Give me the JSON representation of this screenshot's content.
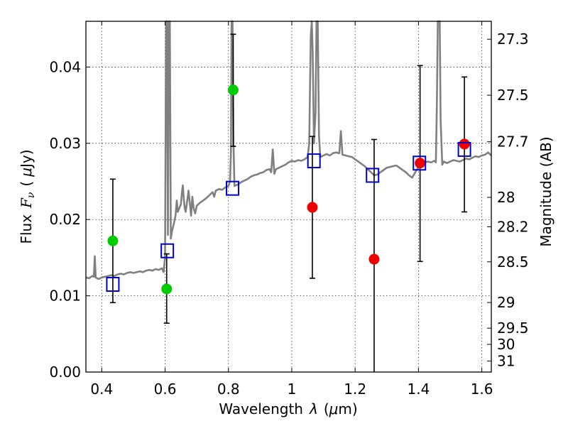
{
  "chart_data": {
    "type": "scatter",
    "xlabel_text": "Wavelength",
    "xlabel_symbol": "λ",
    "xlabel_unit_open": "(",
    "xlabel_unit_mu": "μ",
    "xlabel_unit_rest": "m)",
    "ylabel_text": "Flux",
    "ylabel_symbol": "F",
    "ylabel_sub": "ν",
    "ylabel_unit_open": "(",
    "ylabel_unit_mu": "μ",
    "ylabel_unit_rest": "Jy)",
    "y2label": "Magnitude (AB)",
    "xlim": [
      0.35,
      1.63
    ],
    "ylim": [
      0.0,
      0.046
    ],
    "grid": true,
    "x_ticks": [
      {
        "value": 0.4,
        "label": "0.4"
      },
      {
        "value": 0.6,
        "label": "0.6"
      },
      {
        "value": 0.8,
        "label": "0.8"
      },
      {
        "value": 1.0,
        "label": "1"
      },
      {
        "value": 1.2,
        "label": "1.2"
      },
      {
        "value": 1.4,
        "label": "1.4"
      },
      {
        "value": 1.6,
        "label": "1.6"
      }
    ],
    "y_ticks": [
      {
        "value": 0.0,
        "label": "0.00"
      },
      {
        "value": 0.01,
        "label": "0.01"
      },
      {
        "value": 0.02,
        "label": "0.02"
      },
      {
        "value": 0.03,
        "label": "0.03"
      },
      {
        "value": 0.04,
        "label": "0.04"
      }
    ],
    "mag_ticks": [
      {
        "mag": 27.3,
        "label": "27.3"
      },
      {
        "mag": 27.5,
        "label": "27.5"
      },
      {
        "mag": 27.7,
        "label": "27.7"
      },
      {
        "mag": 28.0,
        "label": "28"
      },
      {
        "mag": 28.2,
        "label": "28.2"
      },
      {
        "mag": 28.5,
        "label": "28.5"
      },
      {
        "mag": 29.0,
        "label": "29"
      },
      {
        "mag": 29.5,
        "label": "29.5"
      },
      {
        "mag": 30.0,
        "label": "30"
      },
      {
        "mag": 31.0,
        "label": "31"
      }
    ],
    "colors": {
      "spectrum": "#808080",
      "green": "#00cc00",
      "red": "#ee0000",
      "model": "#0000cc",
      "errbar": "#000000"
    },
    "spectrum": [
      [
        0.35,
        0.0124
      ],
      [
        0.36,
        0.0123
      ],
      [
        0.37,
        0.0126
      ],
      [
        0.375,
        0.0125
      ],
      [
        0.378,
        0.0152
      ],
      [
        0.381,
        0.0124
      ],
      [
        0.39,
        0.0122
      ],
      [
        0.4,
        0.0124
      ],
      [
        0.41,
        0.0125
      ],
      [
        0.42,
        0.0126
      ],
      [
        0.43,
        0.0127
      ],
      [
        0.44,
        0.0126
      ],
      [
        0.45,
        0.0128
      ],
      [
        0.46,
        0.0129
      ],
      [
        0.47,
        0.0128
      ],
      [
        0.48,
        0.013
      ],
      [
        0.49,
        0.0131
      ],
      [
        0.5,
        0.013
      ],
      [
        0.51,
        0.0131
      ],
      [
        0.52,
        0.0132
      ],
      [
        0.53,
        0.0131
      ],
      [
        0.54,
        0.0133
      ],
      [
        0.55,
        0.0134
      ],
      [
        0.56,
        0.0133
      ],
      [
        0.57,
        0.0135
      ],
      [
        0.58,
        0.0134
      ],
      [
        0.59,
        0.0136
      ],
      [
        0.595,
        0.0131
      ],
      [
        0.6,
        0.015
      ],
      [
        0.603,
        0.046
      ],
      [
        0.606,
        0.046
      ],
      [
        0.609,
        0.018
      ],
      [
        0.612,
        0.046
      ],
      [
        0.615,
        0.046
      ],
      [
        0.618,
        0.0175
      ],
      [
        0.622,
        0.0185
      ],
      [
        0.628,
        0.0195
      ],
      [
        0.633,
        0.0205
      ],
      [
        0.637,
        0.0225
      ],
      [
        0.64,
        0.021
      ],
      [
        0.645,
        0.0215
      ],
      [
        0.65,
        0.022
      ],
      [
        0.653,
        0.0235
      ],
      [
        0.656,
        0.0245
      ],
      [
        0.659,
        0.0228
      ],
      [
        0.662,
        0.0215
      ],
      [
        0.665,
        0.021
      ],
      [
        0.67,
        0.0225
      ],
      [
        0.674,
        0.0238
      ],
      [
        0.678,
        0.0222
      ],
      [
        0.682,
        0.0205
      ],
      [
        0.686,
        0.023
      ],
      [
        0.69,
        0.0215
      ],
      [
        0.695,
        0.0208
      ],
      [
        0.7,
        0.0218
      ],
      [
        0.71,
        0.0222
      ],
      [
        0.72,
        0.0225
      ],
      [
        0.73,
        0.0228
      ],
      [
        0.74,
        0.0232
      ],
      [
        0.75,
        0.0236
      ],
      [
        0.755,
        0.023
      ],
      [
        0.76,
        0.0238
      ],
      [
        0.77,
        0.024
      ],
      [
        0.78,
        0.0239
      ],
      [
        0.79,
        0.0242
      ],
      [
        0.8,
        0.0244
      ],
      [
        0.805,
        0.025
      ],
      [
        0.808,
        0.029
      ],
      [
        0.81,
        0.046
      ],
      [
        0.813,
        0.046
      ],
      [
        0.816,
        0.03
      ],
      [
        0.819,
        0.0244
      ],
      [
        0.83,
        0.0246
      ],
      [
        0.84,
        0.0249
      ],
      [
        0.85,
        0.0251
      ],
      [
        0.86,
        0.0253
      ],
      [
        0.87,
        0.0256
      ],
      [
        0.88,
        0.0258
      ],
      [
        0.89,
        0.0259
      ],
      [
        0.9,
        0.0261
      ],
      [
        0.91,
        0.0262
      ],
      [
        0.92,
        0.0265
      ],
      [
        0.93,
        0.0266
      ],
      [
        0.935,
        0.0262
      ],
      [
        0.94,
        0.0292
      ],
      [
        0.945,
        0.026
      ],
      [
        0.95,
        0.0266
      ],
      [
        0.96,
        0.0268
      ],
      [
        0.97,
        0.027
      ],
      [
        0.98,
        0.0272
      ],
      [
        0.99,
        0.0275
      ],
      [
        1.0,
        0.0277
      ],
      [
        1.01,
        0.0276
      ],
      [
        1.02,
        0.0278
      ],
      [
        1.03,
        0.0277
      ],
      [
        1.04,
        0.0279
      ],
      [
        1.05,
        0.0282
      ],
      [
        1.055,
        0.03
      ],
      [
        1.06,
        0.044
      ],
      [
        1.063,
        0.046
      ],
      [
        1.066,
        0.042
      ],
      [
        1.07,
        0.03
      ],
      [
        1.075,
        0.034
      ],
      [
        1.078,
        0.046
      ],
      [
        1.082,
        0.046
      ],
      [
        1.086,
        0.031
      ],
      [
        1.09,
        0.0282
      ],
      [
        1.1,
        0.0284
      ],
      [
        1.11,
        0.0286
      ],
      [
        1.12,
        0.0284
      ],
      [
        1.13,
        0.0287
      ],
      [
        1.14,
        0.0288
      ],
      [
        1.15,
        0.0287
      ],
      [
        1.155,
        0.0316
      ],
      [
        1.16,
        0.0285
      ],
      [
        1.17,
        0.0284
      ],
      [
        1.18,
        0.0283
      ],
      [
        1.19,
        0.0282
      ],
      [
        1.2,
        0.0279
      ],
      [
        1.21,
        0.0276
      ],
      [
        1.22,
        0.0273
      ],
      [
        1.23,
        0.027
      ],
      [
        1.24,
        0.0266
      ],
      [
        1.25,
        0.0262
      ],
      [
        1.26,
        0.0258
      ],
      [
        1.27,
        0.0259
      ],
      [
        1.28,
        0.0262
      ],
      [
        1.29,
        0.0265
      ],
      [
        1.3,
        0.0268
      ],
      [
        1.31,
        0.0269
      ],
      [
        1.32,
        0.027
      ],
      [
        1.33,
        0.0271
      ],
      [
        1.34,
        0.0268
      ],
      [
        1.35,
        0.0265
      ],
      [
        1.36,
        0.0262
      ],
      [
        1.37,
        0.0258
      ],
      [
        1.38,
        0.0255
      ],
      [
        1.39,
        0.0262
      ],
      [
        1.4,
        0.0269
      ],
      [
        1.41,
        0.0272
      ],
      [
        1.42,
        0.0275
      ],
      [
        1.43,
        0.0276
      ],
      [
        1.44,
        0.0275
      ],
      [
        1.45,
        0.0277
      ],
      [
        1.455,
        0.0275
      ],
      [
        1.458,
        0.035
      ],
      [
        1.461,
        0.046
      ],
      [
        1.467,
        0.046
      ],
      [
        1.47,
        0.033
      ],
      [
        1.475,
        0.0272
      ],
      [
        1.48,
        0.0276
      ],
      [
        1.49,
        0.0274
      ],
      [
        1.5,
        0.0276
      ],
      [
        1.51,
        0.0278
      ],
      [
        1.52,
        0.0277
      ],
      [
        1.53,
        0.0276
      ],
      [
        1.54,
        0.0278
      ],
      [
        1.55,
        0.028
      ],
      [
        1.56,
        0.0279
      ],
      [
        1.57,
        0.0281
      ],
      [
        1.58,
        0.0283
      ],
      [
        1.59,
        0.0282
      ],
      [
        1.6,
        0.0284
      ],
      [
        1.61,
        0.0285
      ],
      [
        1.62,
        0.0288
      ],
      [
        1.63,
        0.0284
      ]
    ],
    "observed": [
      {
        "x": 0.435,
        "y": 0.0172,
        "lo": 0.0091,
        "hi": 0.0253,
        "color": "green"
      },
      {
        "x": 0.605,
        "y": 0.0109,
        "lo": 0.0064,
        "hi": 0.0155,
        "color": "green"
      },
      {
        "x": 0.815,
        "y": 0.037,
        "lo": 0.0296,
        "hi": 0.0443,
        "color": "green"
      },
      {
        "x": 1.065,
        "y": 0.0216,
        "lo": 0.0123,
        "hi": 0.0309,
        "color": "red"
      },
      {
        "x": 1.26,
        "y": 0.0148,
        "lo": 0.0,
        "hi": 0.0305,
        "color": "red"
      },
      {
        "x": 1.405,
        "y": 0.0274,
        "lo": 0.0145,
        "hi": 0.0402,
        "color": "red"
      },
      {
        "x": 1.545,
        "y": 0.0299,
        "lo": 0.021,
        "hi": 0.0387,
        "color": "red"
      }
    ],
    "model": [
      {
        "x": 0.435,
        "y": 0.0115
      },
      {
        "x": 0.607,
        "y": 0.0159
      },
      {
        "x": 0.813,
        "y": 0.0241
      },
      {
        "x": 1.07,
        "y": 0.0277
      },
      {
        "x": 1.255,
        "y": 0.0258
      },
      {
        "x": 1.403,
        "y": 0.0274
      },
      {
        "x": 1.545,
        "y": 0.0292
      }
    ]
  }
}
